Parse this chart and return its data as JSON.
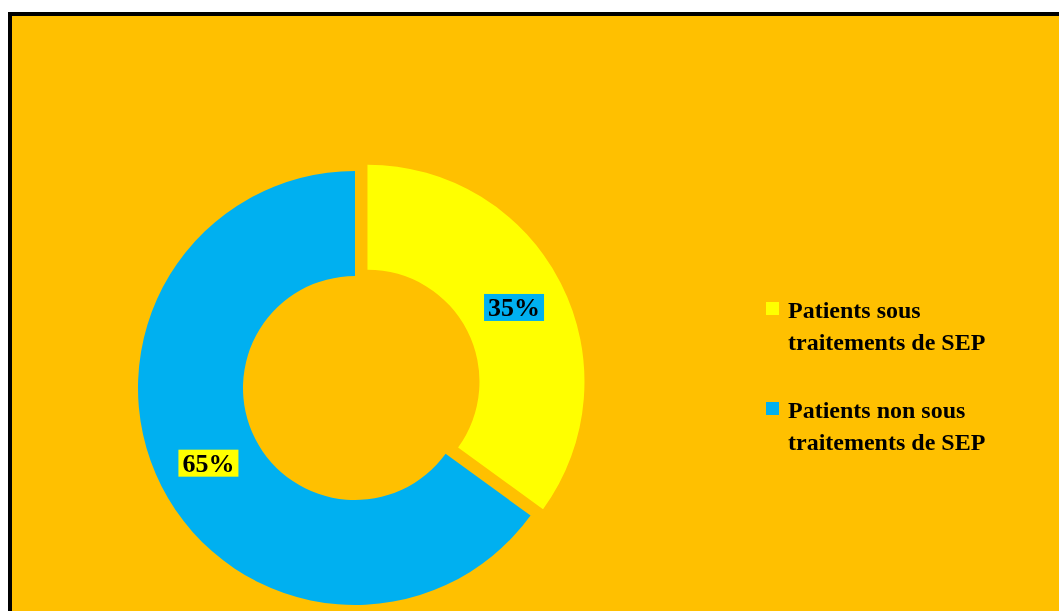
{
  "chart_data": {
    "type": "donut",
    "categories": [
      "Patients sous traitements de SEP",
      "Patients non sous traitements de SEP"
    ],
    "values": [
      35,
      65
    ],
    "colors": [
      "#ffff00",
      "#00b0f0"
    ],
    "value_labels": [
      "35%",
      "65%"
    ],
    "legend": "right"
  }
}
